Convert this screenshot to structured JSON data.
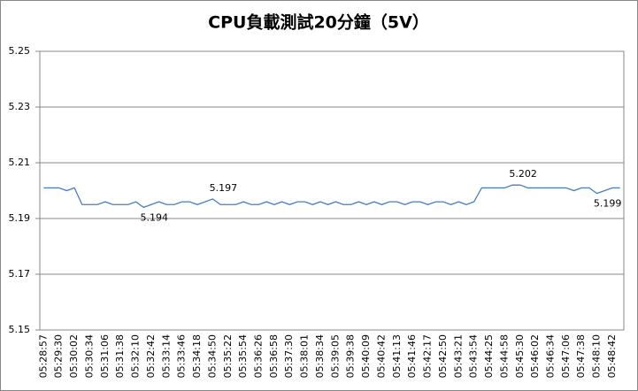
{
  "chart_data": {
    "type": "line",
    "title": "CPU負載測試20分鐘（5V）",
    "categories": [
      "05:28:57",
      null,
      "05:29:30",
      null,
      "05:30:02",
      null,
      "05:30:34",
      null,
      "05:31:06",
      null,
      "05:31:38",
      null,
      "05:32:10",
      null,
      "05:32:42",
      null,
      "05:33:14",
      null,
      "05:33:46",
      null,
      "05:34:18",
      null,
      "05:34:50",
      null,
      "05:35:22",
      null,
      "05:35:54",
      null,
      "05:36:26",
      null,
      "05:36:58",
      null,
      "05:37:30",
      null,
      "05:38:01",
      null,
      "05:38:34",
      null,
      "05:39:05",
      null,
      "05:39:38",
      null,
      "05:40:09",
      null,
      "05:40:42",
      null,
      "05:41:13",
      null,
      "05:41:46",
      null,
      "05:42:17",
      null,
      "05:42:50",
      null,
      "05:43:21",
      null,
      "05:43:54",
      null,
      "05:44:25",
      null,
      "05:44:58",
      null,
      "05:45:30",
      null,
      "05:46:02",
      null,
      "05:46:34",
      null,
      "05:47:06",
      null,
      "05:47:38",
      null,
      "05:48:10",
      null,
      "05:48:42",
      null
    ],
    "values": [
      5.201,
      5.201,
      5.201,
      5.2,
      5.201,
      5.195,
      5.195,
      5.195,
      5.196,
      5.195,
      5.195,
      5.195,
      5.196,
      5.194,
      5.195,
      5.196,
      5.195,
      5.195,
      5.196,
      5.196,
      5.195,
      5.196,
      5.197,
      5.195,
      5.195,
      5.195,
      5.196,
      5.195,
      5.195,
      5.196,
      5.195,
      5.196,
      5.195,
      5.196,
      5.196,
      5.195,
      5.196,
      5.195,
      5.196,
      5.195,
      5.195,
      5.196,
      5.195,
      5.196,
      5.195,
      5.196,
      5.196,
      5.195,
      5.196,
      5.196,
      5.195,
      5.196,
      5.196,
      5.195,
      5.196,
      5.195,
      5.196,
      5.201,
      5.201,
      5.201,
      5.201,
      5.202,
      5.202,
      5.201,
      5.201,
      5.201,
      5.201,
      5.201,
      5.201,
      5.2,
      5.201,
      5.201,
      5.199,
      5.2,
      5.201,
      5.201
    ],
    "value_labels": [
      null,
      null,
      null,
      null,
      null,
      null,
      null,
      null,
      null,
      null,
      null,
      null,
      null,
      "5.194",
      null,
      null,
      null,
      null,
      null,
      null,
      null,
      null,
      "5.197",
      null,
      null,
      null,
      null,
      null,
      null,
      null,
      null,
      null,
      null,
      null,
      null,
      null,
      null,
      null,
      null,
      null,
      null,
      null,
      null,
      null,
      null,
      null,
      null,
      null,
      null,
      null,
      null,
      null,
      null,
      null,
      null,
      null,
      null,
      null,
      null,
      null,
      null,
      "5.202",
      null,
      null,
      null,
      null,
      null,
      null,
      null,
      null,
      null,
      null,
      "5.199",
      null,
      null,
      null
    ],
    "color": "#4a7ebb",
    "ylim": [
      5.15,
      5.25
    ],
    "yticks": [
      5.15,
      5.17,
      5.19,
      5.21,
      5.23,
      5.25
    ],
    "grid": true
  }
}
